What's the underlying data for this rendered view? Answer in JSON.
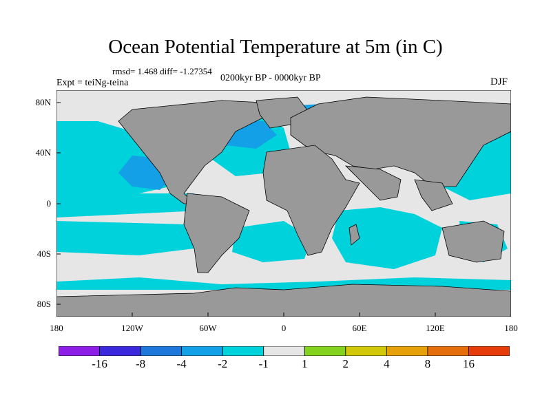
{
  "title": "Ocean Potential Temperature at 5m (in C)",
  "stats_text": "rmsd= 1.468 diff= -1.27354",
  "experiment_text": "Expt = teiNg-teina",
  "period_text": "0200kyr BP - 0000kyr BP",
  "season": "DJF",
  "y_axis": {
    "ticks": [
      "80N",
      "40N",
      "0",
      "40S",
      "80S"
    ]
  },
  "x_axis": {
    "ticks": [
      "180",
      "120W",
      "60W",
      "0",
      "60E",
      "120E",
      "180"
    ]
  },
  "colorbar": {
    "colors": [
      "#8c1ee6",
      "#3c28dc",
      "#1e78dc",
      "#14a0e6",
      "#00d2dc",
      "#e6e6e6",
      "#82d21e",
      "#d2c80a",
      "#e6a00a",
      "#e66e0a",
      "#e63c0a"
    ],
    "labels": [
      "-16",
      "-8",
      "-4",
      "-2",
      "-1",
      "1",
      "2",
      "4",
      "8",
      "16"
    ]
  },
  "legend_colors": {
    "land": "#999999",
    "ocean_no_change": "#e6e6e6",
    "cooling_1_2": "#00d2dc",
    "cooling_2_4": "#14a0e6"
  }
}
